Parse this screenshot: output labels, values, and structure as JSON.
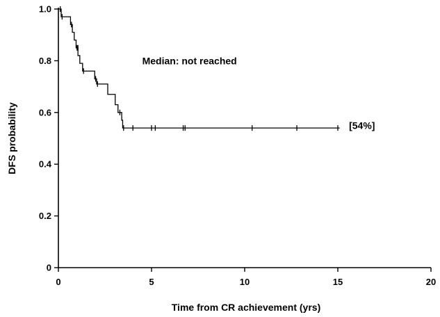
{
  "chart_data": {
    "type": "line",
    "subtype": "kaplan-meier-step",
    "title": "",
    "xlabel": "Time from CR achievement (yrs)",
    "ylabel": "DFS probability",
    "xlim": [
      0,
      20
    ],
    "ylim": [
      0,
      1.0
    ],
    "xticks": [
      0,
      5,
      10,
      15,
      20
    ],
    "xtick_labels": [
      "0",
      "5",
      "10",
      "15",
      "20"
    ],
    "yticks": [
      0,
      0.2,
      0.4,
      0.6,
      0.8,
      1.0
    ],
    "ytick_labels": [
      "0",
      "0.2",
      "0.4",
      "0.6",
      "0.8",
      "1.0"
    ],
    "grid": false,
    "series": [
      {
        "color": "#000000",
        "steps": [
          {
            "x": 0,
            "y": 1.0
          },
          {
            "x": 0.15,
            "y": 0.97
          },
          {
            "x": 0.65,
            "y": 0.94
          },
          {
            "x": 0.75,
            "y": 0.91
          },
          {
            "x": 0.85,
            "y": 0.88
          },
          {
            "x": 0.95,
            "y": 0.85
          },
          {
            "x": 1.05,
            "y": 0.82
          },
          {
            "x": 1.15,
            "y": 0.79
          },
          {
            "x": 1.3,
            "y": 0.76
          },
          {
            "x": 1.95,
            "y": 0.73
          },
          {
            "x": 2.05,
            "y": 0.71
          },
          {
            "x": 2.65,
            "y": 0.67
          },
          {
            "x": 3.05,
            "y": 0.63
          },
          {
            "x": 3.2,
            "y": 0.6
          },
          {
            "x": 3.4,
            "y": 0.57
          },
          {
            "x": 3.45,
            "y": 0.54
          },
          {
            "x": 15.1,
            "y": 0.54
          }
        ],
        "censored": [
          {
            "x": 0.1,
            "y": 1.0
          },
          {
            "x": 0.2,
            "y": 0.97
          },
          {
            "x": 0.7,
            "y": 0.94
          },
          {
            "x": 1.0,
            "y": 0.85
          },
          {
            "x": 1.05,
            "y": 0.85
          },
          {
            "x": 1.35,
            "y": 0.76
          },
          {
            "x": 2.0,
            "y": 0.73
          },
          {
            "x": 2.1,
            "y": 0.71
          },
          {
            "x": 3.3,
            "y": 0.6
          },
          {
            "x": 3.5,
            "y": 0.54
          },
          {
            "x": 4.0,
            "y": 0.54
          },
          {
            "x": 5.0,
            "y": 0.54
          },
          {
            "x": 5.2,
            "y": 0.54
          },
          {
            "x": 6.7,
            "y": 0.54
          },
          {
            "x": 6.8,
            "y": 0.54
          },
          {
            "x": 10.4,
            "y": 0.54
          },
          {
            "x": 12.8,
            "y": 0.54
          },
          {
            "x": 15.0,
            "y": 0.54
          }
        ]
      }
    ],
    "annotations": [
      {
        "text": "Median: not reached",
        "x": 4.5,
        "y": 0.8
      },
      {
        "text": "[54%]",
        "x": 15.6,
        "y": 0.55
      }
    ]
  }
}
